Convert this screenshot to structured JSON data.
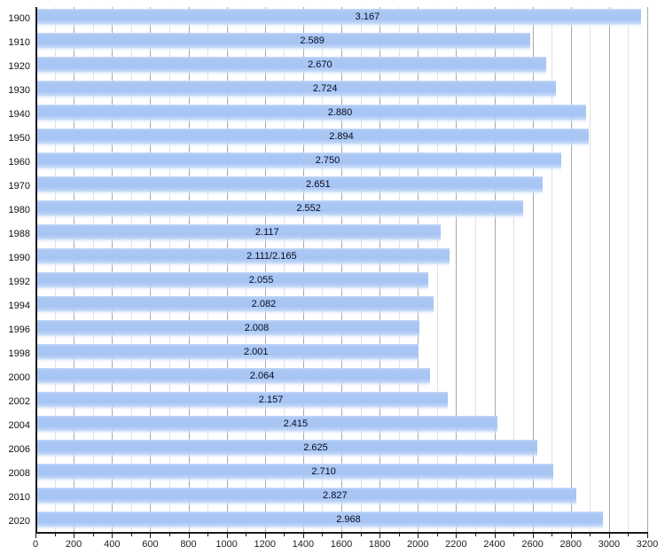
{
  "chart_data": {
    "type": "bar",
    "orientation": "horizontal",
    "title": "",
    "xlabel": "",
    "ylabel": "",
    "categories": [
      "1900",
      "1910",
      "1920",
      "1930",
      "1940",
      "1950",
      "1960",
      "1970",
      "1980",
      "1988",
      "1990",
      "1992",
      "1994",
      "1996",
      "1998",
      "2000",
      "2002",
      "2004",
      "2006",
      "2008",
      "2010",
      "2020"
    ],
    "values": [
      3167,
      2589,
      2670,
      2724,
      2880,
      2894,
      2750,
      2651,
      2552,
      2117,
      2165,
      2055,
      2082,
      2008,
      2001,
      2064,
      2157,
      2415,
      2625,
      2710,
      2827,
      2968
    ],
    "bar_labels": [
      "3.167",
      "2.589",
      "2.670",
      "2.724",
      "2.880",
      "2.894",
      "2.750",
      "2.651",
      "2.552",
      "2.117",
      "2.111/2.165",
      "2.055",
      "2.082",
      "2.008",
      "2.001",
      "2.064",
      "2.157",
      "2.415",
      "2.625",
      "2.710",
      "2.827",
      "2.968"
    ],
    "xlim": [
      0,
      3200
    ],
    "x_major_step": 200,
    "x_minor_step": 100,
    "x_tick_labels": [
      "0",
      "200",
      "400",
      "600",
      "800",
      "1000",
      "1200",
      "1400",
      "1600",
      "1800",
      "2000",
      "2200",
      "2400",
      "2600",
      "2800",
      "3000",
      "3200"
    ],
    "grid": "vertical gridlines at every 100 (minor) and 200 (major), drawn behind bars",
    "legend": "none",
    "colors": {
      "bar_fill": "#a7c5f3",
      "bar_highlight": "#c5d9f9",
      "gridline_major": "#a8a8a8",
      "gridline_minor": "#e0e0e0",
      "axis": "#1a1a1a",
      "bar_label_text": "#0b0b1d",
      "tick_label_text": "#222222"
    }
  }
}
